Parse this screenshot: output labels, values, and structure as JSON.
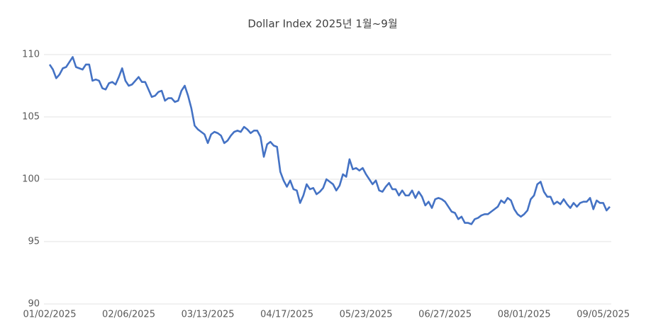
{
  "chart_data": {
    "type": "line",
    "title": "Dollar Index 2025년 1월~9월",
    "categories": [
      "01/02/2025",
      null,
      null,
      null,
      null,
      null,
      null,
      null,
      null,
      null,
      null,
      null,
      null,
      null,
      null,
      null,
      null,
      null,
      null,
      null,
      null,
      null,
      null,
      null,
      "02/06/2025",
      null,
      null,
      null,
      null,
      null,
      null,
      null,
      null,
      null,
      null,
      null,
      null,
      null,
      null,
      null,
      null,
      null,
      null,
      null,
      null,
      null,
      null,
      null,
      "03/13/2025",
      null,
      null,
      null,
      null,
      null,
      null,
      null,
      null,
      null,
      null,
      null,
      null,
      null,
      null,
      null,
      null,
      null,
      null,
      null,
      null,
      null,
      null,
      null,
      "04/17/2025",
      null,
      null,
      null,
      null,
      null,
      null,
      null,
      null,
      null,
      null,
      null,
      null,
      null,
      null,
      null,
      null,
      null,
      null,
      null,
      null,
      null,
      null,
      null,
      "05/23/2025",
      null,
      null,
      null,
      null,
      null,
      null,
      null,
      null,
      null,
      null,
      null,
      null,
      null,
      null,
      null,
      null,
      null,
      null,
      null,
      null,
      null,
      null,
      null,
      "06/27/2025",
      null,
      null,
      null,
      null,
      null,
      null,
      null,
      null,
      null,
      null,
      null,
      null,
      null,
      null,
      null,
      null,
      null,
      null,
      null,
      null,
      null,
      null,
      null,
      "08/01/2025",
      null,
      null,
      null,
      null,
      null,
      null,
      null,
      null,
      null,
      null,
      null,
      null,
      null,
      null,
      null,
      null,
      null,
      null,
      null,
      null,
      null,
      null,
      null,
      "09/05/2025",
      null,
      null
    ],
    "values": [
      109.2,
      108.8,
      108.1,
      108.4,
      108.9,
      109.0,
      109.4,
      109.8,
      109.0,
      108.9,
      108.8,
      109.2,
      109.2,
      107.9,
      108.0,
      107.9,
      107.3,
      107.2,
      107.7,
      107.8,
      107.6,
      108.2,
      108.9,
      107.9,
      107.5,
      107.6,
      107.9,
      108.2,
      107.8,
      107.8,
      107.2,
      106.6,
      106.7,
      107.0,
      107.1,
      106.3,
      106.5,
      106.5,
      106.2,
      106.3,
      107.1,
      107.5,
      106.7,
      105.7,
      104.3,
      104.0,
      103.8,
      103.6,
      102.9,
      103.6,
      103.8,
      103.7,
      103.5,
      102.9,
      103.1,
      103.5,
      103.8,
      103.9,
      103.8,
      104.2,
      104.0,
      103.7,
      103.9,
      103.9,
      103.4,
      101.8,
      102.8,
      103.0,
      102.7,
      102.6,
      100.6,
      99.9,
      99.4,
      99.9,
      99.2,
      99.1,
      98.1,
      98.7,
      99.6,
      99.2,
      99.3,
      98.8,
      99.0,
      99.3,
      100.0,
      99.8,
      99.6,
      99.1,
      99.5,
      100.4,
      100.2,
      101.6,
      100.8,
      100.9,
      100.7,
      100.9,
      100.4,
      100.0,
      99.6,
      99.9,
      99.1,
      99.0,
      99.4,
      99.7,
      99.2,
      99.2,
      98.7,
      99.1,
      98.7,
      98.7,
      99.1,
      98.5,
      99.0,
      98.6,
      97.9,
      98.2,
      97.7,
      98.4,
      98.5,
      98.4,
      98.2,
      97.8,
      97.4,
      97.3,
      96.8,
      97.0,
      96.5,
      96.5,
      96.4,
      96.8,
      96.9,
      97.1,
      97.2,
      97.2,
      97.4,
      97.6,
      97.8,
      98.3,
      98.1,
      98.5,
      98.3,
      97.6,
      97.2,
      97.0,
      97.2,
      97.5,
      98.4,
      98.7,
      99.6,
      99.8,
      99.0,
      98.6,
      98.6,
      98.0,
      98.2,
      98.0,
      98.4,
      98.0,
      97.7,
      98.1,
      97.8,
      98.1,
      98.2,
      98.2,
      98.5,
      97.6,
      98.3,
      98.1,
      98.1,
      97.5,
      97.8
    ],
    "color": "#4472c4",
    "ylim": [
      90,
      110
    ],
    "yticks": [
      90,
      95,
      100,
      105,
      110
    ],
    "grid": true
  }
}
